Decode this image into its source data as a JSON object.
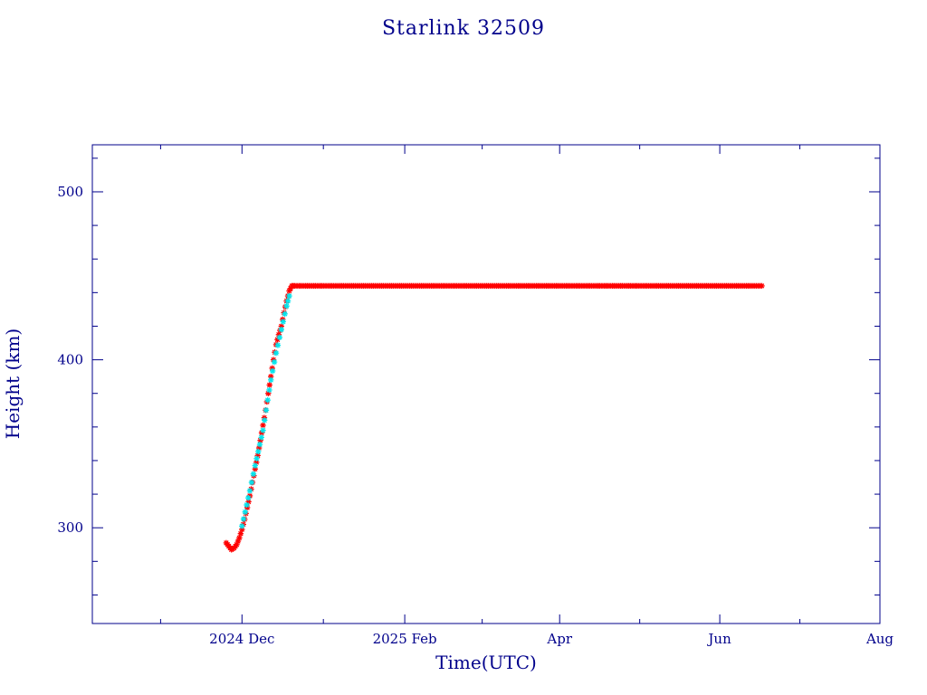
{
  "colors": {
    "axis": "#00008b",
    "text": "#00008b",
    "series_main": "#ff0000",
    "series_alt": "#00e5ee"
  },
  "chart_data": {
    "type": "scatter",
    "title": "Starlink 32509",
    "xlabel": "Time(UTC)",
    "ylabel": "Height (km)",
    "x_type": "date",
    "xlim": [
      "2024-10-05",
      "2025-08-01"
    ],
    "ylim": [
      243,
      528
    ],
    "x_ticks": [
      {
        "date": "2024-12-01",
        "label": "2024 Dec"
      },
      {
        "date": "2025-02-01",
        "label": "2025 Feb"
      },
      {
        "date": "2025-04-01",
        "label": "Apr"
      },
      {
        "date": "2025-06-01",
        "label": "Jun"
      },
      {
        "date": "2025-08-01",
        "label": "Aug"
      }
    ],
    "y_ticks": [
      300,
      400,
      500
    ],
    "grid": false,
    "series": [
      {
        "marker": "asterisk",
        "color": "#ff0000",
        "points": [
          [
            "2024-11-25",
            291
          ],
          [
            "2024-11-26",
            289
          ],
          [
            "2024-11-27",
            287
          ],
          [
            "2024-11-28",
            288
          ],
          [
            "2024-11-29",
            290
          ],
          [
            "2024-11-30",
            294
          ],
          [
            "2024-12-01",
            299
          ],
          [
            "2024-12-02",
            305
          ],
          [
            "2024-12-03",
            312
          ],
          [
            "2024-12-04",
            319
          ],
          [
            "2024-12-05",
            327
          ],
          [
            "2024-12-06",
            335
          ],
          [
            "2024-12-07",
            343
          ],
          [
            "2024-12-08",
            352
          ],
          [
            "2024-12-09",
            361
          ],
          [
            "2024-12-10",
            370
          ],
          [
            "2024-12-11",
            380
          ],
          [
            "2024-12-12",
            390
          ],
          [
            "2024-12-13",
            400
          ],
          [
            "2024-12-14",
            409
          ],
          [
            "2024-12-15",
            415
          ],
          [
            "2024-12-16",
            420
          ],
          [
            "2024-12-17",
            428
          ],
          [
            "2024-12-18",
            435
          ],
          [
            "2024-12-19",
            441
          ],
          [
            "2024-12-20",
            444
          ],
          [
            "2024-12-21",
            444
          ],
          [
            "2025-01-01",
            444
          ],
          [
            "2025-01-15",
            444
          ],
          [
            "2025-02-01",
            444
          ],
          [
            "2025-02-15",
            444
          ],
          [
            "2025-03-01",
            444
          ],
          [
            "2025-03-15",
            444
          ],
          [
            "2025-04-01",
            444
          ],
          [
            "2025-04-15",
            444
          ],
          [
            "2025-05-01",
            444
          ],
          [
            "2025-05-15",
            444
          ],
          [
            "2025-06-01",
            444
          ],
          [
            "2025-06-15",
            444
          ],
          [
            "2025-06-17",
            444
          ]
        ]
      },
      {
        "marker": "asterisk",
        "color": "#00e5ee",
        "points": [
          [
            "2024-12-01",
            301
          ],
          [
            "2024-12-04",
            322
          ],
          [
            "2024-12-06",
            337
          ],
          [
            "2024-12-09",
            358
          ],
          [
            "2024-12-12",
            388
          ],
          [
            "2024-12-14",
            404
          ],
          [
            "2024-12-18",
            432
          ],
          [
            "2024-12-19",
            438
          ]
        ]
      }
    ]
  }
}
